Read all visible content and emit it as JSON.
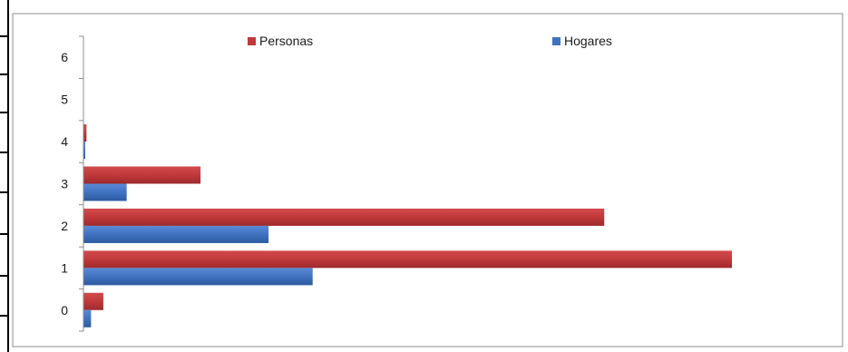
{
  "chart_data": {
    "type": "bar",
    "orientation": "horizontal",
    "categories": [
      "0",
      "1",
      "2",
      "3",
      "4",
      "5",
      "6"
    ],
    "series": [
      {
        "name": "Personas",
        "color": "#c0393b",
        "values": [
          30,
          1000,
          803,
          180,
          4,
          0,
          0
        ]
      },
      {
        "name": "Hogares",
        "color": "#3f72c0",
        "values": [
          11,
          353,
          285,
          66,
          2,
          0,
          0
        ]
      }
    ],
    "x_axis_visible": false,
    "xlim": [
      0,
      1170
    ],
    "grid": false,
    "legend": "top"
  }
}
